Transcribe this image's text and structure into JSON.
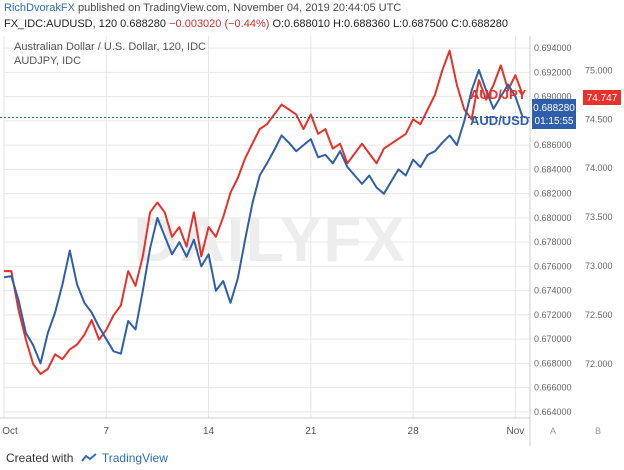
{
  "header": {
    "author": "RichDvorakFX",
    "published": "published on TradingView.com, November 04, 2019 20:44:05 UTC",
    "symbol_line": "FX_IDC:AUDUSD, 120",
    "last": "0.688280",
    "change": "−0.003020 (−0.44%)",
    "ohlc": "O:0.688010 H:0.688360 L:0.687500 C:0.688280"
  },
  "legend": {
    "title": "Australian Dollar / U.S. Dollar, 120, IDC",
    "secondary": "AUDJPY, IDC"
  },
  "labels": {
    "audjpy": "AUD/JPY",
    "audusd": "AUD/USD",
    "audjpy_price": "74.747",
    "audusd_price": "0.688280",
    "countdown": "01:15:55"
  },
  "axis_buttons": {
    "a": "A",
    "b": "B"
  },
  "footer": {
    "made_with": "Created with",
    "brand": "TradingView"
  },
  "watermark": "DAILYFX",
  "colors": {
    "audusd": "#2f5fa8",
    "audjpy": "#e8312a",
    "grid": "#e6e6e6"
  },
  "chart_data": {
    "type": "line",
    "x_ticks": [
      "Oct",
      "7",
      "14",
      "21",
      "28",
      "Nov"
    ],
    "right_axis": {
      "label": "AUDUSD",
      "ticks": [
        "0.694000",
        "0.692000",
        "0.690000",
        "0.688000",
        "0.686000",
        "0.684000",
        "0.682000",
        "0.680000",
        "0.678000",
        "0.676000",
        "0.674000",
        "0.672000",
        "0.670000",
        "0.668000",
        "0.666000",
        "0.664000"
      ],
      "range": [
        0.6635,
        0.695
      ]
    },
    "left_axis": {
      "label": "AUDJPY",
      "ticks": [
        "75.000",
        "74.500",
        "74.000",
        "73.500",
        "73.000",
        "72.500",
        "72.000"
      ],
      "range": [
        71.45,
        75.35
      ]
    },
    "series": [
      {
        "name": "AUD/USD",
        "axis": "right",
        "color": "#2f5fa8",
        "x": [
          0,
          0.5,
          1,
          1.5,
          2,
          2.5,
          3,
          3.5,
          4,
          4.5,
          5,
          5.5,
          6,
          6.5,
          7,
          7.5,
          8,
          8.5,
          9,
          9.5,
          10,
          10.5,
          11,
          11.5,
          12,
          12.5,
          13,
          13.5,
          14,
          14.5,
          15,
          15.5,
          16,
          16.5,
          17,
          17.5,
          18,
          18.5,
          19,
          19.5,
          20,
          20.5,
          21,
          21.5,
          22,
          22.5,
          23,
          23.5,
          24,
          24.5,
          25,
          25.5,
          26,
          26.5,
          27,
          27.5,
          28,
          28.5,
          29,
          29.5,
          30,
          30.5,
          31,
          31.5,
          32,
          32.5,
          33,
          33.5,
          34,
          34.5,
          35,
          35.5
        ],
        "y": [
          0.6751,
          0.6752,
          0.6732,
          0.6705,
          0.6695,
          0.668,
          0.6705,
          0.6722,
          0.6745,
          0.6773,
          0.6745,
          0.673,
          0.6722,
          0.671,
          0.67,
          0.669,
          0.6688,
          0.6715,
          0.6708,
          0.674,
          0.6775,
          0.68,
          0.6785,
          0.677,
          0.678,
          0.6768,
          0.6782,
          0.676,
          0.677,
          0.674,
          0.6748,
          0.673,
          0.675,
          0.6782,
          0.6812,
          0.6835,
          0.6845,
          0.6856,
          0.6868,
          0.6862,
          0.6855,
          0.686,
          0.6865,
          0.685,
          0.6852,
          0.6845,
          0.6855,
          0.6842,
          0.6835,
          0.6828,
          0.6835,
          0.6825,
          0.682,
          0.683,
          0.684,
          0.6835,
          0.6848,
          0.6842,
          0.6852,
          0.6855,
          0.6862,
          0.6868,
          0.686,
          0.688,
          0.6905,
          0.6922,
          0.6905,
          0.689,
          0.69,
          0.691,
          0.69,
          0.6883
        ]
      },
      {
        "name": "AUD/JPY",
        "axis": "left",
        "color": "#e8312a",
        "x": [
          0,
          0.5,
          1,
          1.5,
          2,
          2.5,
          3,
          3.5,
          4,
          4.5,
          5,
          5.5,
          6,
          6.5,
          7,
          7.5,
          8,
          8.5,
          9,
          9.5,
          10,
          10.5,
          11,
          11.5,
          12,
          12.5,
          13,
          13.5,
          14,
          14.5,
          15,
          15.5,
          16,
          16.5,
          17,
          17.5,
          18,
          18.5,
          19,
          19.5,
          20,
          20.5,
          21,
          21.5,
          22,
          22.5,
          23,
          23.5,
          24,
          24.5,
          25,
          25.5,
          26,
          26.5,
          27,
          27.5,
          28,
          28.5,
          29,
          29.5,
          30,
          30.5,
          31,
          31.5,
          32,
          32.5,
          33,
          33.5,
          34,
          34.5,
          35,
          35.5
        ],
        "y": [
          72.95,
          72.95,
          72.55,
          72.25,
          72.0,
          71.9,
          71.95,
          72.1,
          72.05,
          72.15,
          72.2,
          72.3,
          72.45,
          72.25,
          72.35,
          72.5,
          72.6,
          72.95,
          72.8,
          73.1,
          73.55,
          73.65,
          73.55,
          73.3,
          73.4,
          73.2,
          73.55,
          73.1,
          73.4,
          73.3,
          73.5,
          73.75,
          73.9,
          74.1,
          74.25,
          74.4,
          74.45,
          74.55,
          74.65,
          74.6,
          74.55,
          74.4,
          74.55,
          74.35,
          74.4,
          74.2,
          74.25,
          74.05,
          74.15,
          74.25,
          74.15,
          74.05,
          74.2,
          74.25,
          74.3,
          74.35,
          74.5,
          74.45,
          74.6,
          74.75,
          75.0,
          75.2,
          74.85,
          74.6,
          74.5,
          74.9,
          74.7,
          74.85,
          75.05,
          74.8,
          74.95,
          74.75
        ]
      }
    ]
  }
}
